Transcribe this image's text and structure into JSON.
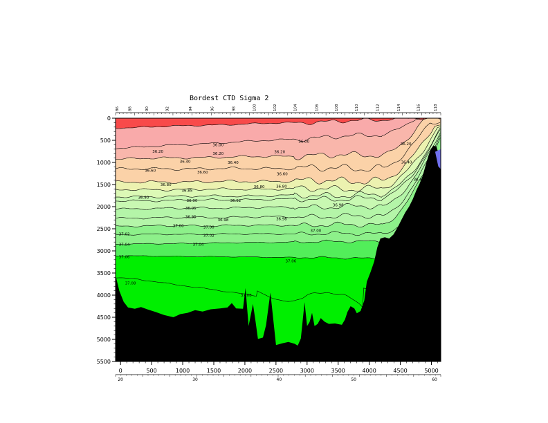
{
  "chart_data": {
    "type": "heatmap",
    "title": "Bordest CTD Sigma 2",
    "xlabel": "",
    "ylabel": "",
    "xlim": [
      -80,
      5150
    ],
    "ylim": [
      0,
      5500
    ],
    "y_inverted": true,
    "x_ticks": [
      0,
      500,
      1000,
      1500,
      2000,
      2500,
      3000,
      3500,
      4000,
      4500,
      5000
    ],
    "y_ticks": [
      0,
      500,
      1000,
      1500,
      2000,
      2500,
      3000,
      3500,
      4000,
      4500,
      5000,
      5500
    ],
    "secondary_x_ticks": [
      {
        "x": 0,
        "label": "20"
      },
      {
        "x": 1200,
        "label": "30"
      },
      {
        "x": 2550,
        "label": "40"
      },
      {
        "x": 3750,
        "label": "50"
      },
      {
        "x": 5050,
        "label": "60"
      }
    ],
    "station_labels": [
      {
        "x": -60,
        "label": "86"
      },
      {
        "x": 150,
        "label": "88"
      },
      {
        "x": 420,
        "label": "90"
      },
      {
        "x": 750,
        "label": "92"
      },
      {
        "x": 1120,
        "label": "94"
      },
      {
        "x": 1470,
        "label": "96"
      },
      {
        "x": 1820,
        "label": "98"
      },
      {
        "x": 2150,
        "label": "100"
      },
      {
        "x": 2480,
        "label": "102"
      },
      {
        "x": 2810,
        "label": "104"
      },
      {
        "x": 3150,
        "label": "106"
      },
      {
        "x": 3470,
        "label": "108"
      },
      {
        "x": 3790,
        "label": "110"
      },
      {
        "x": 4130,
        "label": "112"
      },
      {
        "x": 4470,
        "label": "114"
      },
      {
        "x": 4790,
        "label": "116"
      },
      {
        "x": 5060,
        "label": "118"
      }
    ],
    "contour_levels": [
      36.0,
      36.2,
      36.4,
      36.6,
      36.8,
      36.85,
      36.9,
      36.92,
      36.95,
      36.98,
      37.0,
      37.02,
      37.04,
      37.06,
      37.08
    ],
    "contour_labels": [
      {
        "x": 1570,
        "y": 600,
        "label": "36.00"
      },
      {
        "x": 2950,
        "y": 520,
        "label": "36.00"
      },
      {
        "x": 600,
        "y": 750,
        "label": "36.20"
      },
      {
        "x": 1570,
        "y": 800,
        "label": "36.20"
      },
      {
        "x": 2560,
        "y": 760,
        "label": "36.20"
      },
      {
        "x": 4590,
        "y": 580,
        "label": "36.20"
      },
      {
        "x": 1040,
        "y": 980,
        "label": "36.40"
      },
      {
        "x": 1810,
        "y": 1000,
        "label": "36.40"
      },
      {
        "x": 4600,
        "y": 990,
        "label": "36.40"
      },
      {
        "x": 480,
        "y": 1180,
        "label": "36.60"
      },
      {
        "x": 1320,
        "y": 1220,
        "label": "36.60"
      },
      {
        "x": 2600,
        "y": 1260,
        "label": "36.60"
      },
      {
        "x": 4800,
        "y": 1380,
        "label": "36.60"
      },
      {
        "x": 730,
        "y": 1500,
        "label": "36.80"
      },
      {
        "x": 2230,
        "y": 1550,
        "label": "36.80"
      },
      {
        "x": 2590,
        "y": 1540,
        "label": "36.80"
      },
      {
        "x": 1070,
        "y": 1630,
        "label": "36.85"
      },
      {
        "x": 370,
        "y": 1790,
        "label": "36.90"
      },
      {
        "x": 1150,
        "y": 1860,
        "label": "36.90"
      },
      {
        "x": 1850,
        "y": 1860,
        "label": "36.92"
      },
      {
        "x": 1130,
        "y": 2030,
        "label": "36.95"
      },
      {
        "x": 3500,
        "y": 1960,
        "label": "36.98"
      },
      {
        "x": 1130,
        "y": 2230,
        "label": "36.95"
      },
      {
        "x": 1650,
        "y": 2300,
        "label": "36.98"
      },
      {
        "x": 2590,
        "y": 2270,
        "label": "36.98"
      },
      {
        "x": 930,
        "y": 2430,
        "label": "37.00"
      },
      {
        "x": 1420,
        "y": 2460,
        "label": "37.00"
      },
      {
        "x": 3140,
        "y": 2540,
        "label": "37.00"
      },
      {
        "x": 60,
        "y": 2620,
        "label": "37.02"
      },
      {
        "x": 1420,
        "y": 2650,
        "label": "37.02"
      },
      {
        "x": 60,
        "y": 2850,
        "label": "37.04"
      },
      {
        "x": 1250,
        "y": 2850,
        "label": "37.04"
      },
      {
        "x": 60,
        "y": 3130,
        "label": "37.06"
      },
      {
        "x": 2740,
        "y": 3230,
        "label": "37.06"
      },
      {
        "x": 160,
        "y": 3730,
        "label": "37.08"
      },
      {
        "x": 2020,
        "y": 4000,
        "label": "37.08"
      }
    ],
    "fill_bands": [
      {
        "below": 36.0,
        "color": "#f84a4a"
      },
      {
        "from": 36.0,
        "to": 36.2,
        "color": "#f9aaaa"
      },
      {
        "from": 36.2,
        "to": 36.4,
        "color": "#f9b6ab"
      },
      {
        "from": 36.4,
        "to": 36.8,
        "color": "#fbd2a8"
      },
      {
        "from": 36.8,
        "to": 36.85,
        "color": "#ecf2b0"
      },
      {
        "from": 36.85,
        "to": 36.9,
        "color": "#dcf9b6"
      },
      {
        "from": 36.9,
        "to": 36.95,
        "color": "#c8f8b2"
      },
      {
        "from": 36.95,
        "to": 37.0,
        "color": "#b4f5a8"
      },
      {
        "from": 37.0,
        "to": 37.04,
        "color": "#8df08a"
      },
      {
        "from": 37.04,
        "to": 37.06,
        "color": "#52ee5a"
      },
      {
        "above": 37.06,
        "color": "#00ef00"
      }
    ],
    "bottom_color": "#000000",
    "special_patch_color": "#7070ee",
    "grid": false,
    "legend": "none"
  }
}
